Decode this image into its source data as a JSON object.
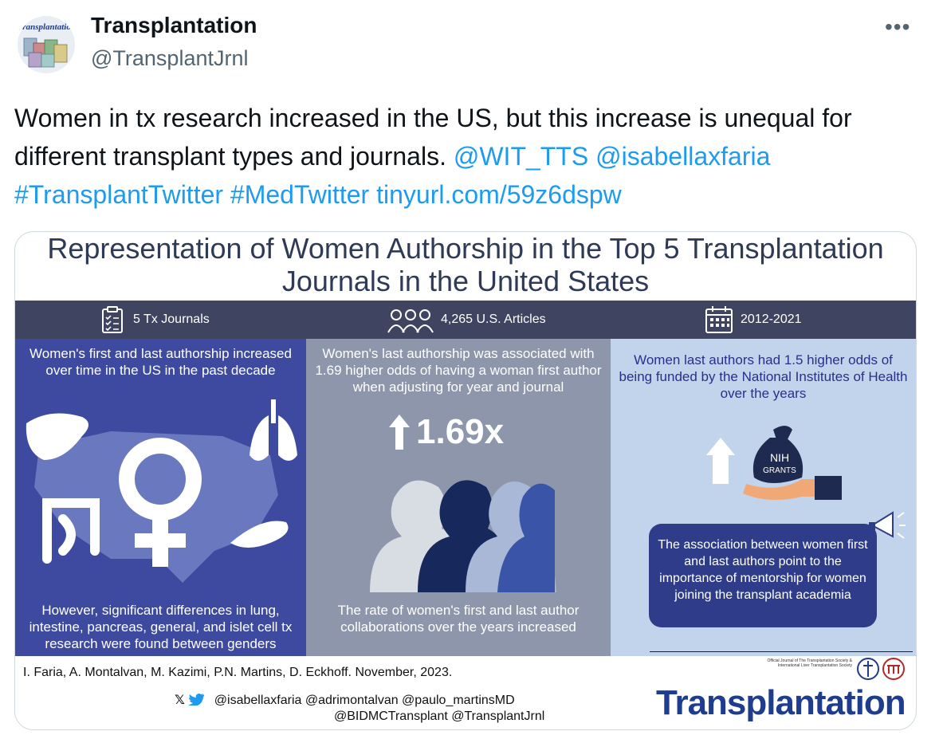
{
  "account": {
    "name": "Transplantation",
    "handle": "@TransplantJrnl",
    "avatar_logo_text": "Transplantation"
  },
  "more_label": "•••",
  "tweet": {
    "text": "Women in tx research increased in the US, but this increase is unequal for different transplant types and journals.",
    "mentions": [
      "@WIT_TTS",
      "@isabellaxfaria"
    ],
    "hashtags": [
      "#TransplantTwitter",
      "#MedTwitter"
    ],
    "link": "tinyurl.com/59z6dspw"
  },
  "infographic": {
    "title_line1": "Representation of Women Authorship in the Top 5 Transplantation",
    "title_line2": "Journals in the United States",
    "stats": [
      {
        "icon": "clipboard-icon",
        "label": "5 Tx Journals"
      },
      {
        "icon": "people-icon",
        "label": "4,265 U.S. Articles"
      },
      {
        "icon": "calendar-icon",
        "label": "2012-2021"
      }
    ],
    "panel1": {
      "top_text": "Women's first and last authorship increased over time in the US in the past decade",
      "bottom_text": "However, significant differences in lung, intestine, pancreas, general, and islet cell tx research were found between genders"
    },
    "panel2": {
      "top_text": "Women's last authorship was associated with 1.69 higher odds of having a woman first author when adjusting for year and journal",
      "big_stat": "1.69x",
      "bottom_text": "The rate of women's first and last author collaborations over the years increased"
    },
    "panel3": {
      "top_text": "Women last authors had 1.5 higher odds of being funded by the National Institutes of Health over the years",
      "bag_label_1": "NIH",
      "bag_label_2": "GRANTS",
      "callout_text": "The association between women first and last authors point to the importance of mentorship for women joining the transplant academia"
    },
    "authors": "I. Faria, A. Montalvan,  M. Kazimi, P.N. Martins, D. Eckhoff. November, 2023.",
    "handles_line1": "@isabellaxfaria @adrimontalvan @paulo_martinsMD",
    "handles_line2": "@BIDMCTransplant @TransplantJrnl",
    "journal_note": "Official Journal of The Transplantation Society & International Liver Transplantation Society",
    "journal_logo": "Transplantation"
  },
  "colors": {
    "link": "#1d9bf0",
    "band": "#3f4560",
    "panel1": "#3d4aa0",
    "panel2": "#8e96ab",
    "panel3": "#c2d3ec",
    "journal_blue": "#1e3d8f"
  }
}
